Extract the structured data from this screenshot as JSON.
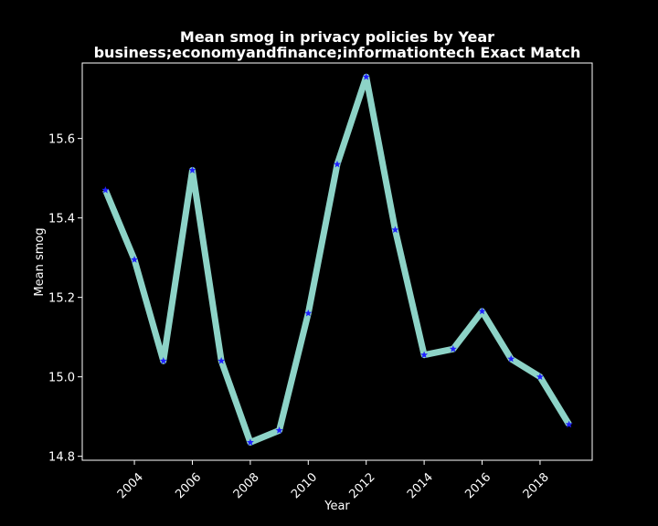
{
  "chart_data": {
    "type": "line",
    "title": "Mean smog in privacy policies by Year",
    "subtitle": "business;economyandfinance;informationtech Exact Match",
    "xlabel": "Year",
    "ylabel": "Mean smog",
    "xlim": [
      2002.2,
      2019.8
    ],
    "ylim": [
      14.79,
      15.79
    ],
    "x_ticks": [
      2004,
      2006,
      2008,
      2010,
      2012,
      2014,
      2016,
      2018
    ],
    "y_ticks": [
      14.8,
      15.0,
      15.2,
      15.4,
      15.6
    ],
    "grid": false,
    "series": [
      {
        "x": [
          2003,
          2004,
          2005,
          2006,
          2007,
          2008,
          2009,
          2010,
          2011,
          2012,
          2013,
          2014,
          2015,
          2016,
          2017,
          2018,
          2019
        ],
        "y": [
          15.47,
          15.295,
          15.04,
          15.52,
          15.04,
          14.835,
          14.865,
          15.16,
          15.535,
          15.755,
          15.37,
          15.055,
          15.07,
          15.165,
          15.045,
          15.0,
          14.88
        ],
        "line_color": "#8dd3c7",
        "marker_color": "#1f1fff",
        "marker": "star"
      }
    ]
  }
}
